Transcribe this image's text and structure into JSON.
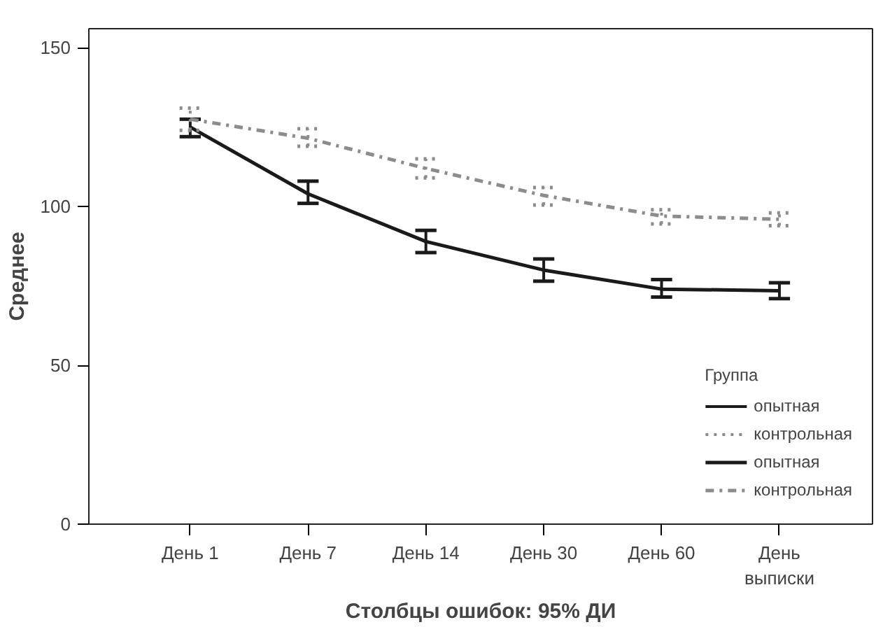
{
  "chart_data": {
    "type": "line",
    "categories": [
      "День 1",
      "День 7",
      "День 14",
      "День 30",
      "День 60",
      "День\nвыписки"
    ],
    "xlabel": "Столбцы ошибок: 95% ДИ",
    "ylabel": "Среднее",
    "legend_title": "Группа",
    "ylim": [
      0,
      156
    ],
    "yticks": [
      0,
      50,
      100,
      150
    ],
    "grid": false,
    "legend": "bottom right",
    "marker": "none",
    "series": [
      {
        "name": "опытная",
        "color": "#1a1a1a",
        "line_style": "solid",
        "values": [
          125,
          104,
          89,
          80,
          74,
          73.5
        ],
        "errors": [
          [
            122,
            127.5
          ],
          [
            101,
            108
          ],
          [
            85.5,
            92.5
          ],
          [
            76.5,
            83.5
          ],
          [
            71.5,
            77
          ],
          [
            71,
            76
          ]
        ]
      },
      {
        "name": "контрольная",
        "color": "#8c8c8c",
        "line_style": "dashdot",
        "values": [
          127.5,
          121.5,
          112,
          103.5,
          97,
          96
        ],
        "errors": [
          [
            124,
            131
          ],
          [
            119,
            124.5
          ],
          [
            109,
            115
          ],
          [
            100.5,
            106
          ],
          [
            94.5,
            99
          ],
          [
            94,
            98
          ]
        ]
      }
    ]
  }
}
